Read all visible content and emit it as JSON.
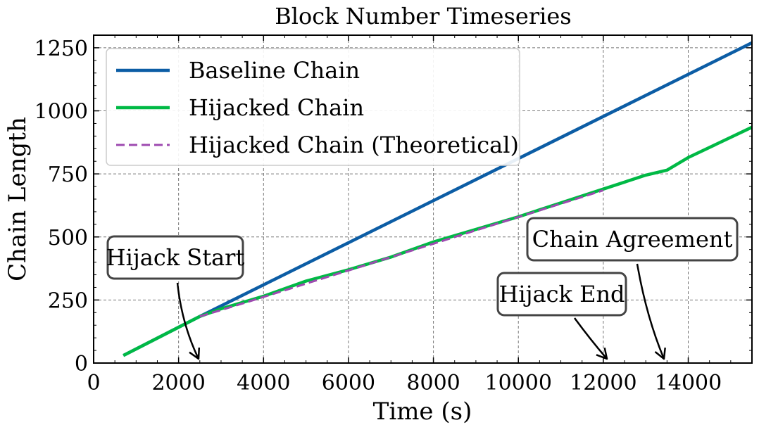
{
  "chart_data": {
    "type": "line",
    "title": "Block Number Timeseries",
    "xlabel": "Time (s)",
    "ylabel": "Chain Length",
    "xlim": [
      0,
      15500
    ],
    "ylim": [
      0,
      1300
    ],
    "x_ticks": [
      0,
      2000,
      4000,
      6000,
      8000,
      10000,
      12000,
      14000
    ],
    "y_ticks": [
      0,
      250,
      500,
      750,
      1000,
      1250
    ],
    "grid": true,
    "legend_position": "upper-left",
    "series": [
      {
        "name": "Baseline Chain",
        "color": "#0c5da5",
        "style": "solid",
        "points": [
          [
            700,
            30
          ],
          [
            2500,
            185
          ],
          [
            15500,
            1270
          ]
        ]
      },
      {
        "name": "Hijacked Chain",
        "color": "#00b945",
        "style": "solid",
        "points": [
          [
            700,
            30
          ],
          [
            2500,
            185
          ],
          [
            3000,
            215
          ],
          [
            4000,
            265
          ],
          [
            5000,
            325
          ],
          [
            6000,
            370
          ],
          [
            7000,
            420
          ],
          [
            8000,
            480
          ],
          [
            9000,
            530
          ],
          [
            10000,
            580
          ],
          [
            11000,
            635
          ],
          [
            12000,
            690
          ],
          [
            13000,
            745
          ],
          [
            13500,
            765
          ],
          [
            14000,
            815
          ],
          [
            15500,
            935
          ]
        ]
      },
      {
        "name": "Hijacked Chain (Theoretical)",
        "color": "#9e4ab0",
        "style": "dashed",
        "points": [
          [
            2500,
            185
          ],
          [
            3000,
            210
          ],
          [
            4000,
            262
          ],
          [
            5000,
            315
          ],
          [
            6000,
            367
          ],
          [
            7000,
            420
          ],
          [
            8000,
            473
          ],
          [
            9000,
            526
          ],
          [
            10000,
            579
          ],
          [
            11000,
            632
          ],
          [
            12000,
            685
          ]
        ]
      }
    ],
    "annotations": [
      {
        "text": "Hijack Start",
        "x": 2500
      },
      {
        "text": "Hijack End",
        "x": 12200
      },
      {
        "text": "Chain Agreement",
        "x": 13500
      }
    ]
  }
}
